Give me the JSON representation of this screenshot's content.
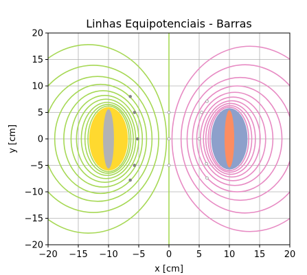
{
  "chart_data": {
    "type": "contour",
    "title": "Linhas Equipotenciais - Barras",
    "xlabel": "x [cm]",
    "ylabel": "y [cm]",
    "xlim": [
      -20,
      20
    ],
    "ylim": [
      -20,
      20
    ],
    "xticks": [
      -20,
      -15,
      -10,
      -5,
      0,
      5,
      10,
      15,
      20
    ],
    "yticks": [
      -20,
      -15,
      -10,
      -5,
      0,
      5,
      10,
      15,
      20
    ],
    "xtick_labels": [
      "−20",
      "−15",
      "−10",
      "−5",
      "0",
      "5",
      "10",
      "15",
      "20"
    ],
    "ytick_labels": [
      "−20",
      "−15",
      "−10",
      "−5",
      "0",
      "5",
      "10",
      "15",
      "20"
    ],
    "grid": true,
    "colors": {
      "left_contours": "#a6d854",
      "right_contours": "#e78ac3",
      "left_bar_fill": "#ffd92f",
      "left_bar_core": "#b3b3b3",
      "right_bar_fill": "#8da0cb",
      "right_bar_core": "#fc8d62",
      "center_line": "#a6d854",
      "points": "#808080"
    },
    "left_bar": {
      "center": [
        -10,
        0
      ],
      "fill_ellipse": {
        "rx": 3.2,
        "ry": 6.0
      },
      "core_ellipse": {
        "rx": 0.9,
        "ry": 5.6
      }
    },
    "right_bar": {
      "center": [
        10,
        0
      ],
      "fill_ellipse": {
        "rx": 3.0,
        "ry": 5.8
      },
      "core_ellipse": {
        "rx": 0.8,
        "ry": 5.4
      }
    },
    "left_contours": [
      {
        "cx": -10.0,
        "cy": 0,
        "rx": 3.4,
        "ry": 6.2
      },
      {
        "cx": -10.1,
        "cy": 0,
        "rx": 3.8,
        "ry": 6.5
      },
      {
        "cx": -10.2,
        "cy": 0,
        "rx": 4.3,
        "ry": 6.9
      },
      {
        "cx": -10.4,
        "cy": 0,
        "rx": 4.9,
        "ry": 7.5
      },
      {
        "cx": -10.6,
        "cy": 0,
        "rx": 5.6,
        "ry": 8.2
      },
      {
        "cx": -10.9,
        "cy": 0,
        "rx": 6.5,
        "ry": 9.1
      },
      {
        "cx": -11.3,
        "cy": 0,
        "rx": 7.6,
        "ry": 10.3
      },
      {
        "cx": -11.8,
        "cy": 0,
        "rx": 9.0,
        "ry": 11.8
      },
      {
        "cx": -12.5,
        "cy": 0,
        "rx": 10.8,
        "ry": 13.9
      },
      {
        "cx": -13.3,
        "cy": 0,
        "rx": 12.9,
        "ry": 17.8
      }
    ],
    "right_contours": [
      {
        "cx": 10.0,
        "cy": 0,
        "rx": 3.2,
        "ry": 6.0
      },
      {
        "cx": 10.1,
        "cy": 0,
        "rx": 3.6,
        "ry": 6.3
      },
      {
        "cx": 10.2,
        "cy": 0,
        "rx": 4.1,
        "ry": 6.7
      },
      {
        "cx": 10.4,
        "cy": 0,
        "rx": 4.7,
        "ry": 7.2
      },
      {
        "cx": 10.6,
        "cy": 0,
        "rx": 5.4,
        "ry": 7.9
      },
      {
        "cx": 10.9,
        "cy": 0,
        "rx": 6.3,
        "ry": 8.8
      },
      {
        "cx": 11.3,
        "cy": 0,
        "rx": 7.4,
        "ry": 10.0
      },
      {
        "cx": 11.8,
        "cy": 0,
        "rx": 8.8,
        "ry": 11.6
      },
      {
        "cx": 12.6,
        "cy": 0,
        "rx": 10.6,
        "ry": 14.0
      },
      {
        "cx": 13.4,
        "cy": 0,
        "rx": 12.9,
        "ry": 17.5
      }
    ],
    "center_line_x": 0,
    "points_dark": [
      [
        -6.4,
        8.0
      ],
      [
        -5.7,
        5.0
      ],
      [
        -5.2,
        0
      ],
      [
        -5.7,
        -5.0
      ],
      [
        -6.4,
        -7.8
      ]
    ],
    "points_light": [
      [
        0,
        5.0
      ],
      [
        0,
        0
      ],
      [
        0,
        -5.0
      ],
      [
        5.4,
        5.0
      ],
      [
        6.3,
        7.1
      ],
      [
        5.0,
        0
      ],
      [
        6.2,
        -4.7
      ],
      [
        6.3,
        -7.4
      ]
    ]
  }
}
